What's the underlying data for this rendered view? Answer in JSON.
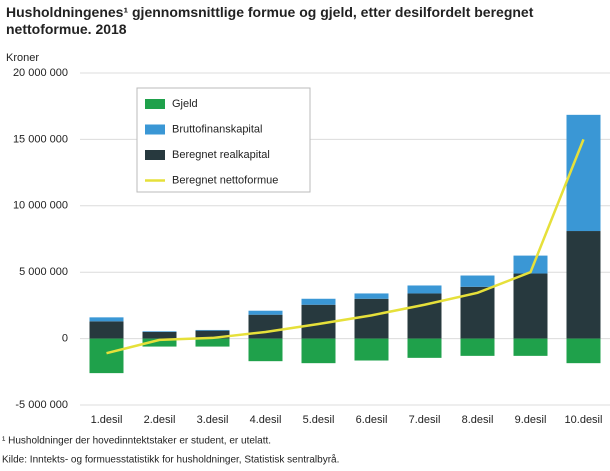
{
  "chart_data": {
    "type": "bar",
    "title": "Husholdningenes¹ gjennomsnittlige formue og gjeld, etter desilfordelt beregnet nettoformue. 2018",
    "y_label": "Kroner",
    "categories": [
      "1.desil",
      "2.desil",
      "3.desil",
      "4.desil",
      "5.desil",
      "6.desil",
      "7.desil",
      "8.desil",
      "9.desil",
      "10.desil"
    ],
    "series": [
      {
        "name": "Gjeld",
        "type": "bar",
        "color": "#1fa14b",
        "values": [
          -2600000,
          -600000,
          -600000,
          -1700000,
          -1850000,
          -1650000,
          -1450000,
          -1300000,
          -1300000,
          -1850000
        ]
      },
      {
        "name": "Bruttofinanskapital",
        "type": "bar",
        "color": "#3a97d5",
        "values": [
          300000,
          50000,
          50000,
          300000,
          450000,
          400000,
          600000,
          850000,
          1350000,
          8750000
        ]
      },
      {
        "name": "Beregnet realkapital",
        "type": "bar",
        "color": "#27393e",
        "values": [
          1300000,
          500000,
          600000,
          1800000,
          2550000,
          3000000,
          3400000,
          3900000,
          4900000,
          8100000
        ]
      },
      {
        "name": "Beregnet nettoformue",
        "type": "line",
        "color": "#e6e03a",
        "values": [
          -1100000,
          -100000,
          50000,
          500000,
          1100000,
          1750000,
          2550000,
          3450000,
          5000000,
          15000000
        ]
      }
    ],
    "ylim": [
      -5000000,
      20000000
    ],
    "yticks": [
      {
        "value": -5000000,
        "label": "-5 000 000"
      },
      0,
      {
        "value": 5000000,
        "label": "5 000 000"
      },
      {
        "value": 10000000,
        "label": "10 000 000"
      },
      {
        "value": 15000000,
        "label": "15 000 000"
      },
      {
        "value": 20000000,
        "label": "20 000 000"
      }
    ],
    "grid": true,
    "legend": "upper left",
    "footnotes": [
      "¹ Husholdninger der hovedinntektstaker er student, er utelatt.",
      "Kilde: Inntekts- og formuesstatistikk for husholdninger, Statistisk sentralbyrå."
    ]
  }
}
